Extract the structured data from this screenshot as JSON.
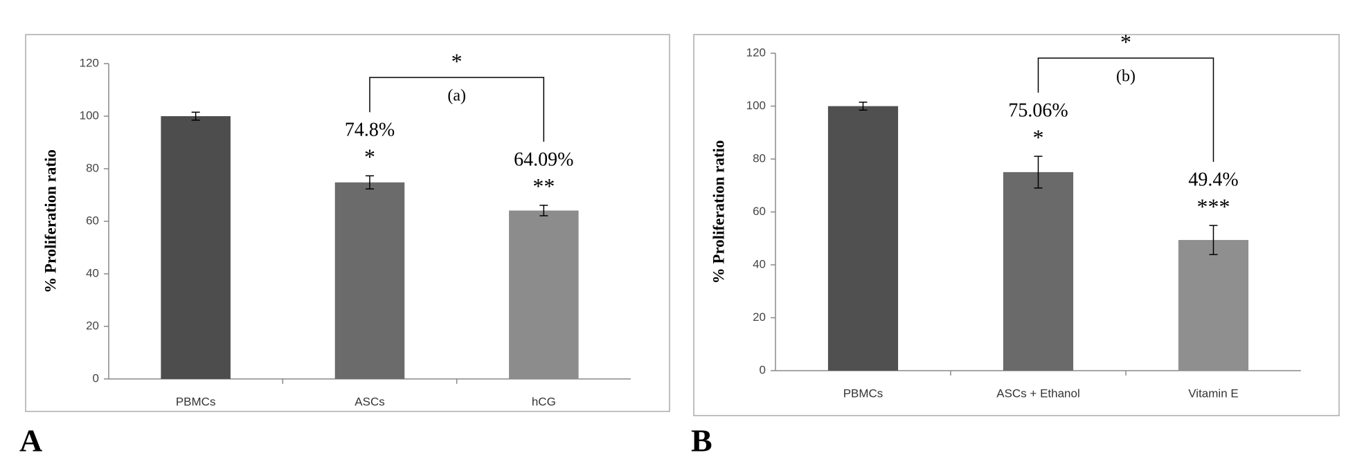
{
  "chart_data": [
    {
      "type": "bar",
      "panel_label": "A",
      "ylabel": "% Proliferation ratio",
      "categories": [
        "PBMCs",
        "ASCs",
        "hCG"
      ],
      "values": [
        100,
        74.8,
        64.09
      ],
      "errors": [
        1.5,
        2.5,
        2
      ],
      "value_labels": [
        null,
        "74.8%",
        "64.09%"
      ],
      "significance": [
        null,
        "*",
        "**"
      ],
      "colors": [
        "#4d4d4d",
        "#6b6b6b",
        "#8c8c8c"
      ],
      "bracket": {
        "star": "*",
        "label": "(a)"
      },
      "ylim": [
        0,
        120
      ],
      "yticks": [
        0,
        20,
        40,
        60,
        80,
        100,
        120
      ]
    },
    {
      "type": "bar",
      "panel_label": "B",
      "ylabel": "% Proliferation ratio",
      "categories": [
        "PBMCs",
        "ASCs + Ethanol",
        "Vitamin E"
      ],
      "values": [
        100,
        75.06,
        49.4
      ],
      "errors": [
        1.5,
        6,
        5.5
      ],
      "value_labels": [
        null,
        "75.06%",
        "49.4%"
      ],
      "significance": [
        null,
        "*",
        "***"
      ],
      "colors": [
        "#505050",
        "#6a6a6a",
        "#8f8f8f"
      ],
      "bracket": {
        "star": "*",
        "label": "(b)"
      },
      "ylim": [
        0,
        120
      ],
      "yticks": [
        0,
        20,
        40,
        60,
        80,
        100,
        120
      ]
    }
  ]
}
